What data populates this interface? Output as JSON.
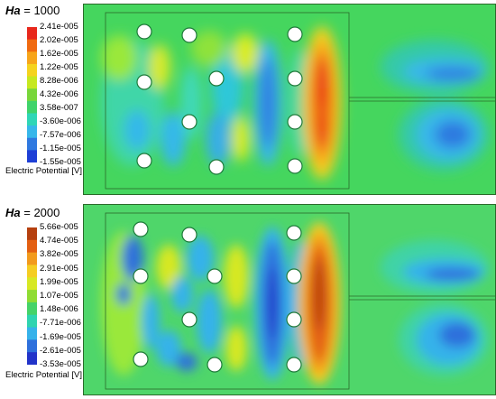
{
  "panels": [
    {
      "title_var": "Ha",
      "title_value": "= 1000",
      "legend_title": "Electric Potential [V]",
      "legend_ticks": [
        "2.41e-005",
        "2.02e-005",
        "1.62e-005",
        "1.22e-005",
        "8.28e-006",
        "4.32e-006",
        "3.58e-007",
        "-3.60e-006",
        "-7.57e-006",
        "-1.15e-005",
        "-1.55e-005"
      ],
      "legend_colors": [
        "#e8281c",
        "#f06a10",
        "#f7a51a",
        "#f5d31e",
        "#c6e81f",
        "#78d63a",
        "#3fd36a",
        "#2fd6b6",
        "#37b7ea",
        "#2f79e0",
        "#1e3fd6"
      ]
    },
    {
      "title_var": "Ha",
      "title_value": "= 2000",
      "legend_title": "Electric Potential [V]",
      "legend_ticks": [
        "5.66e-005",
        "4.74e-005",
        "3.82e-005",
        "2.91e-005",
        "1.99e-005",
        "1.07e-005",
        "1.48e-006",
        "-7.71e-006",
        "-1.69e-005",
        "-2.61e-005",
        "-3.53e-005"
      ],
      "legend_colors": [
        "#b5400f",
        "#e35f12",
        "#f29a1c",
        "#f5cd22",
        "#d7e824",
        "#8fdc33",
        "#45d368",
        "#2fd4b0",
        "#36b2ea",
        "#2e70dc",
        "#2234c9"
      ]
    }
  ]
}
